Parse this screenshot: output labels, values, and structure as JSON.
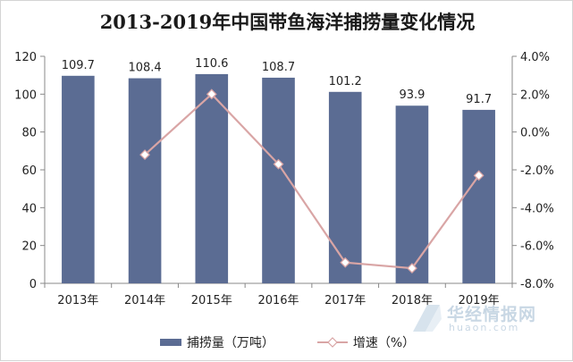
{
  "chart_data": {
    "type": "bar",
    "title": "2013-2019年中国带鱼海洋捕捞量变化情况",
    "categories": [
      "2013年",
      "2014年",
      "2015年",
      "2016年",
      "2017年",
      "2018年",
      "2019年"
    ],
    "series": [
      {
        "name": "捕捞量（万吨）",
        "type": "bar",
        "axis": "left",
        "values": [
          109.7,
          108.4,
          110.6,
          108.7,
          101.2,
          93.9,
          91.7
        ],
        "value_labels": [
          "109.7",
          "108.4",
          "110.6",
          "108.7",
          "101.2",
          "93.9",
          "91.7"
        ],
        "color": "#5b6c93"
      },
      {
        "name": "增速（%）",
        "type": "line",
        "axis": "right",
        "values": [
          null,
          -1.2,
          2.0,
          -1.7,
          -6.9,
          -7.2,
          -2.3
        ],
        "color": "#d9a5a5",
        "marker": "diamond"
      }
    ],
    "y_left": {
      "ylim": [
        0,
        120
      ],
      "ticks": [
        0,
        20,
        40,
        60,
        80,
        100,
        120
      ],
      "tick_labels": [
        "0",
        "20",
        "40",
        "60",
        "80",
        "100",
        "120"
      ]
    },
    "y_right": {
      "ylim": [
        -8,
        4
      ],
      "ticks": [
        -8,
        -6,
        -4,
        -2,
        0,
        2,
        4
      ],
      "tick_labels": [
        "-8.0%",
        "-6.0%",
        "-4.0%",
        "-2.0%",
        "0.0%",
        "2.0%",
        "4.0%"
      ]
    },
    "grid": false,
    "legend_position": "bottom"
  },
  "legend": {
    "bar_label": "捕捞量（万吨）",
    "line_label": "增速（%）"
  },
  "watermark": {
    "text_cn": "华经情报网",
    "text_en": "huaon.com"
  },
  "colors": {
    "bar": "#5b6c93",
    "line": "#d9a5a5",
    "axis": "#888888",
    "text": "#222222"
  }
}
